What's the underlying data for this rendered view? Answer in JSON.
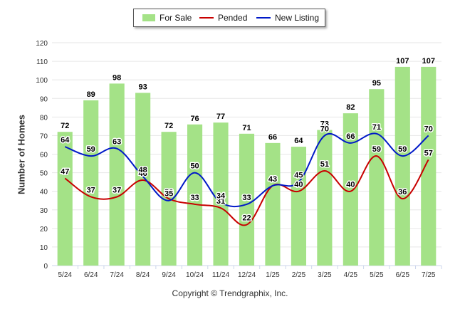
{
  "legend": {
    "for_sale": "For Sale",
    "pended": "Pended",
    "new_listing": "New Listing"
  },
  "colors": {
    "for_sale": "#a4e287",
    "pended": "#c80000",
    "new_listing": "#0019c8",
    "grid": "#e6e6e6"
  },
  "footer": {
    "credits": "Copyright © Trendgraphix, Inc."
  },
  "chart_data": {
    "type": "bar",
    "categories": [
      "5/24",
      "6/24",
      "7/24",
      "8/24",
      "9/24",
      "10/24",
      "11/24",
      "12/24",
      "1/25",
      "2/25",
      "3/25",
      "4/25",
      "5/25",
      "6/25",
      "7/25"
    ],
    "series": [
      {
        "name": "For Sale",
        "type": "bar",
        "values": [
          72,
          89,
          98,
          93,
          72,
          76,
          77,
          71,
          66,
          64,
          73,
          82,
          95,
          107,
          107
        ]
      },
      {
        "name": "Pended",
        "type": "line",
        "values": [
          47,
          37,
          37,
          46,
          36,
          33,
          31,
          22,
          43,
          40,
          51,
          40,
          59,
          36,
          57
        ]
      },
      {
        "name": "New Listing",
        "type": "line",
        "values": [
          64,
          59,
          63,
          48,
          35,
          50,
          34,
          33,
          43,
          45,
          70,
          66,
          71,
          59,
          70
        ]
      }
    ],
    "ylabel": "Number of Homes",
    "xlabel": "",
    "ylim": [
      0,
      120
    ],
    "yticks": [
      0,
      10,
      20,
      30,
      40,
      50,
      60,
      70,
      80,
      90,
      100,
      110,
      120
    ],
    "grid": true,
    "legend_position": "top-center"
  }
}
